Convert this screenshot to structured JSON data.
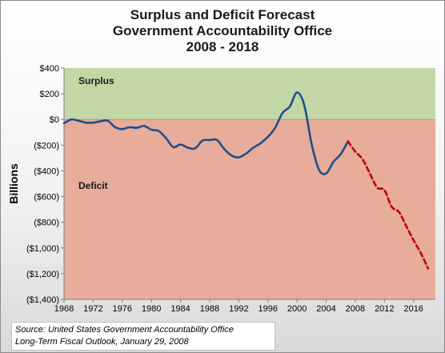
{
  "chart_data": {
    "type": "line",
    "title_lines": [
      "Surplus and Deficit Forecast",
      "Government Accountability Office",
      "2008 - 2018"
    ],
    "ylabel": "Billions",
    "xlabel": "",
    "ylim": [
      -1400,
      400
    ],
    "xlim": [
      1968,
      2019
    ],
    "yticks": [
      400,
      200,
      0,
      -200,
      -400,
      -600,
      -800,
      -1000,
      -1200,
      -1400
    ],
    "ytick_labels": [
      "$400",
      "$200",
      "$0",
      "($200)",
      "($400)",
      "($600)",
      "($800)",
      "($1,000)",
      "($1,200)",
      "($1,400)"
    ],
    "xticks": [
      1968,
      1972,
      1976,
      1980,
      1984,
      1988,
      1992,
      1996,
      2000,
      2004,
      2008,
      2012,
      2016
    ],
    "regions": [
      {
        "label": "Surplus",
        "from": 0,
        "to": 400,
        "color": "#c3d7a6"
      },
      {
        "label": "Deficit",
        "from": -1400,
        "to": 0,
        "color": "#e8ac9a"
      }
    ],
    "grid": false,
    "series": [
      {
        "style": "solid",
        "color": "#1f4e8c",
        "x": [
          1968,
          1969,
          1970,
          1971,
          1972,
          1973,
          1974,
          1975,
          1976,
          1977,
          1978,
          1979,
          1980,
          1981,
          1982,
          1983,
          1984,
          1985,
          1986,
          1987,
          1988,
          1989,
          1990,
          1991,
          1992,
          1993,
          1994,
          1995,
          1996,
          1997,
          1998,
          1999,
          2000,
          2001,
          2002,
          2003,
          2004,
          2005,
          2006,
          2007
        ],
        "values": [
          -30,
          0,
          -10,
          -25,
          -25,
          -15,
          -10,
          -60,
          -75,
          -60,
          -65,
          -50,
          -80,
          -90,
          -145,
          -215,
          -195,
          -220,
          -225,
          -165,
          -160,
          -160,
          -230,
          -280,
          -295,
          -265,
          -220,
          -185,
          -135,
          -65,
          50,
          100,
          210,
          110,
          -190,
          -390,
          -420,
          -330,
          -270,
          -170
        ]
      },
      {
        "style": "dashed",
        "color": "#c00000",
        "x": [
          2007,
          2008,
          2009,
          2010,
          2011,
          2012,
          2013,
          2014,
          2015,
          2016,
          2017,
          2018
        ],
        "values": [
          -170,
          -250,
          -310,
          -420,
          -530,
          -550,
          -680,
          -720,
          -830,
          -940,
          -1040,
          -1160
        ]
      }
    ]
  },
  "source": {
    "line1": "Source: United States Government Accountability Office",
    "line2": "Long-Term Fiscal Outlook, January 29, 2008"
  }
}
